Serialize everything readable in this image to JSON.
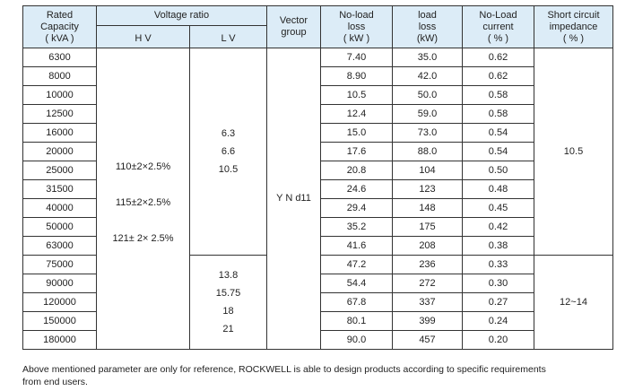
{
  "header": {
    "rated_capacity": [
      "Rated",
      "Capacity",
      "( kVA )"
    ],
    "voltage_ratio": "Voltage ratio",
    "hv": "H V",
    "lv": "L V",
    "vector_group": [
      "Vector",
      "group"
    ],
    "no_load_loss": [
      "No-load",
      "loss",
      "( kW )"
    ],
    "load_loss": [
      "load",
      "loss",
      "(kW)"
    ],
    "no_load_current": [
      "No-Load",
      "current",
      "( % )"
    ],
    "impedance": [
      "Short circuit",
      "impedance",
      "( % )"
    ]
  },
  "hv_values": [
    "110±2×2.5%",
    "115±2×2.5%",
    "121± 2× 2.5%"
  ],
  "lv_group1": [
    "6.3",
    "6.6",
    "10.5"
  ],
  "lv_group2": [
    "13.8",
    "15.75",
    "18",
    "21"
  ],
  "vector_group_value": "Y N d11",
  "impedance_group1": "10.5",
  "impedance_group2": "12~14",
  "rows": [
    {
      "capacity": "6300",
      "nll": "7.40",
      "ll": "35.0",
      "nlc": "0.62"
    },
    {
      "capacity": "8000",
      "nll": "8.90",
      "ll": "42.0",
      "nlc": "0.62"
    },
    {
      "capacity": "10000",
      "nll": "10.5",
      "ll": "50.0",
      "nlc": "0.58"
    },
    {
      "capacity": "12500",
      "nll": "12.4",
      "ll": "59.0",
      "nlc": "0.58"
    },
    {
      "capacity": "16000",
      "nll": "15.0",
      "ll": "73.0",
      "nlc": "0.54"
    },
    {
      "capacity": "20000",
      "nll": "17.6",
      "ll": "88.0",
      "nlc": "0.54"
    },
    {
      "capacity": "25000",
      "nll": "20.8",
      "ll": "104",
      "nlc": "0.50"
    },
    {
      "capacity": "31500",
      "nll": "24.6",
      "ll": "123",
      "nlc": "0.48"
    },
    {
      "capacity": "40000",
      "nll": "29.4",
      "ll": "148",
      "nlc": "0.45"
    },
    {
      "capacity": "50000",
      "nll": "35.2",
      "ll": "175",
      "nlc": "0.42"
    },
    {
      "capacity": "63000",
      "nll": "41.6",
      "ll": "208",
      "nlc": "0.38"
    },
    {
      "capacity": "75000",
      "nll": "47.2",
      "ll": "236",
      "nlc": "0.33"
    },
    {
      "capacity": "90000",
      "nll": "54.4",
      "ll": "272",
      "nlc": "0.30"
    },
    {
      "capacity": "120000",
      "nll": "67.8",
      "ll": "337",
      "nlc": "0.27"
    },
    {
      "capacity": "150000",
      "nll": "80.1",
      "ll": "399",
      "nlc": "0.24"
    },
    {
      "capacity": "180000",
      "nll": "90.0",
      "ll": "457",
      "nlc": "0.20"
    }
  ],
  "note": [
    "Above mentioned parameter are only for reference, ROCKWELL is able to design products according to specific requirements",
    "from end users."
  ]
}
